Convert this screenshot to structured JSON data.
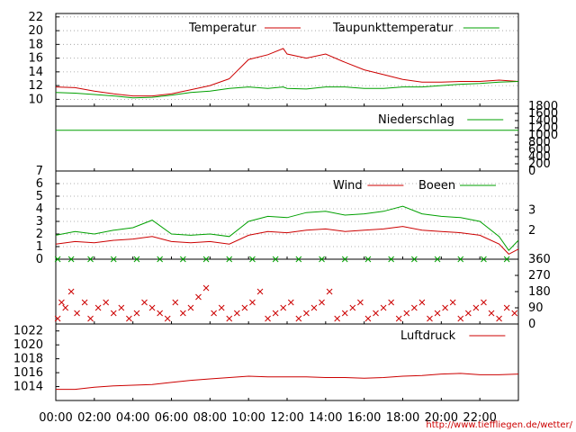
{
  "source_credit": "http://www.tieffliegen.de/wetter/",
  "colors": {
    "red": "#cc0000",
    "green": "#00a000",
    "grid": "#999999"
  },
  "x_ticks": [
    "00:00",
    "02:00",
    "04:00",
    "06:00",
    "08:00",
    "10:00",
    "12:00",
    "14:00",
    "16:00",
    "18:00",
    "20:00",
    "22:00"
  ],
  "chart_data": [
    {
      "id": "temperature",
      "type": "line",
      "ylim": [
        9,
        22.5
      ],
      "y_ticks": [
        "22",
        "20",
        "18",
        "16",
        "14",
        "12",
        "10"
      ],
      "y_tick_values": [
        22,
        20,
        18,
        16,
        14,
        12,
        10
      ],
      "grid": true,
      "legend_position": "top-right",
      "x_hours": [
        0,
        1,
        2,
        3,
        4,
        5,
        6,
        7,
        8,
        9,
        10,
        11,
        11.8,
        12,
        13,
        14,
        15,
        16,
        17,
        18,
        19,
        20,
        21,
        22,
        23,
        24
      ],
      "series": [
        {
          "name": "Temperatur",
          "color": "#cc0000",
          "values": [
            11.8,
            11.7,
            11.2,
            10.8,
            10.5,
            10.5,
            10.8,
            11.4,
            12.0,
            13.0,
            15.8,
            16.5,
            17.4,
            16.6,
            16.0,
            16.6,
            15.4,
            14.3,
            13.6,
            12.9,
            12.5,
            12.5,
            12.6,
            12.6,
            12.8,
            12.6
          ]
        },
        {
          "name": "Taupunkttemperatur",
          "color": "#00a000",
          "values": [
            11.0,
            10.9,
            10.7,
            10.5,
            10.2,
            10.3,
            10.6,
            11.0,
            11.2,
            11.6,
            11.8,
            11.6,
            11.8,
            11.6,
            11.5,
            11.8,
            11.8,
            11.6,
            11.6,
            11.8,
            11.8,
            12.0,
            12.2,
            12.3,
            12.5,
            12.6
          ]
        }
      ]
    },
    {
      "id": "precipitation",
      "type": "line",
      "ylim": [
        0,
        1800
      ],
      "y_ticks_right": [
        "1800",
        "1600",
        "1400",
        "1200",
        "1000",
        "800",
        "600",
        "400",
        "200",
        "0"
      ],
      "y_tick_values": [
        1800,
        1600,
        1400,
        1200,
        1000,
        800,
        600,
        400,
        200,
        0
      ],
      "legend_position": "top-right",
      "x_hours": [
        0,
        24
      ],
      "series": [
        {
          "name": "Niederschlag",
          "color": "#00a000",
          "values": [
            1130,
            1130
          ]
        }
      ]
    },
    {
      "id": "wind",
      "type": "line",
      "ylim": [
        0,
        7
      ],
      "y_ticks": [
        "7",
        "6",
        "5",
        "4",
        "3",
        "2",
        "1",
        "0"
      ],
      "y_tick_values": [
        7,
        6,
        5,
        4,
        3,
        2,
        1,
        0
      ],
      "y_ticks_right": [
        "3",
        "2"
      ],
      "y_ticks_right_values": [
        3.9,
        2.3
      ],
      "grid": true,
      "legend_position": "top-right",
      "x_hours": [
        0,
        1,
        2,
        3,
        4,
        5,
        6,
        7,
        8,
        9,
        10,
        11,
        12,
        13,
        14,
        15,
        16,
        17,
        18,
        19,
        20,
        21,
        22,
        23,
        23.5,
        24
      ],
      "series": [
        {
          "name": "Wind",
          "color": "#cc0000",
          "values": [
            1.2,
            1.4,
            1.3,
            1.5,
            1.6,
            1.8,
            1.4,
            1.3,
            1.4,
            1.2,
            1.9,
            2.2,
            2.1,
            2.3,
            2.4,
            2.2,
            2.3,
            2.4,
            2.6,
            2.3,
            2.2,
            2.1,
            1.9,
            1.2,
            0.4,
            0.8
          ]
        },
        {
          "name": "Boeen",
          "color": "#00a000",
          "values": [
            1.9,
            2.2,
            2.0,
            2.3,
            2.5,
            3.1,
            2.0,
            1.9,
            2.0,
            1.8,
            3.0,
            3.4,
            3.3,
            3.7,
            3.8,
            3.5,
            3.6,
            3.8,
            4.2,
            3.6,
            3.4,
            3.3,
            3.0,
            1.8,
            0.7,
            1.5
          ]
        }
      ]
    },
    {
      "id": "wind_direction",
      "type": "scatter",
      "ylim": [
        0,
        360
      ],
      "y_ticks_right": [
        "360",
        "270",
        "180",
        "90",
        "0"
      ],
      "y_tick_values": [
        360,
        270,
        180,
        90,
        0
      ],
      "x_hours": [
        0.1,
        0.3,
        0.5,
        0.8,
        1.1,
        1.5,
        1.8,
        2.2,
        2.6,
        3.0,
        3.4,
        3.8,
        4.2,
        4.6,
        5.0,
        5.4,
        5.8,
        6.2,
        6.6,
        7.0,
        7.4,
        7.8,
        8.2,
        8.6,
        9.0,
        9.4,
        9.8,
        10.2,
        10.6,
        11.0,
        11.4,
        11.8,
        12.2,
        12.6,
        13.0,
        13.4,
        13.8,
        14.2,
        14.6,
        15.0,
        15.4,
        15.8,
        16.2,
        16.6,
        17.0,
        17.4,
        17.8,
        18.2,
        18.6,
        19.0,
        19.4,
        19.8,
        20.2,
        20.6,
        21.0,
        21.4,
        21.8,
        22.2,
        22.6,
        23.0,
        23.4,
        23.8
      ],
      "values": [
        30,
        120,
        90,
        180,
        60,
        120,
        30,
        90,
        120,
        60,
        90,
        30,
        60,
        120,
        90,
        60,
        30,
        120,
        60,
        90,
        150,
        200,
        60,
        90,
        30,
        60,
        90,
        120,
        180,
        30,
        60,
        90,
        120,
        30,
        60,
        90,
        120,
        180,
        30,
        60,
        90,
        120,
        30,
        60,
        90,
        120,
        30,
        60,
        90,
        120,
        30,
        60,
        90,
        120,
        30,
        60,
        90,
        120,
        60,
        30,
        90,
        60
      ]
    },
    {
      "id": "pressure",
      "type": "line",
      "ylim": [
        1012,
        1023
      ],
      "y_ticks": [
        "1022",
        "1020",
        "1018",
        "1016",
        "1014"
      ],
      "y_tick_values": [
        1022,
        1020,
        1018,
        1016,
        1014
      ],
      "legend_position": "top-right",
      "x_hours": [
        0,
        1,
        2,
        3,
        4,
        5,
        6,
        7,
        8,
        9,
        10,
        11,
        12,
        13,
        14,
        15,
        16,
        17,
        18,
        19,
        20,
        21,
        22,
        23,
        24
      ],
      "series": [
        {
          "name": "Luftdruck",
          "color": "#cc0000",
          "values": [
            1013.6,
            1013.6,
            1013.9,
            1014.1,
            1014.2,
            1014.3,
            1014.6,
            1014.9,
            1015.1,
            1015.3,
            1015.5,
            1015.4,
            1015.4,
            1015.4,
            1015.3,
            1015.3,
            1015.2,
            1015.3,
            1015.5,
            1015.6,
            1015.8,
            1015.9,
            1015.7,
            1015.7,
            1015.8
          ]
        }
      ]
    }
  ]
}
